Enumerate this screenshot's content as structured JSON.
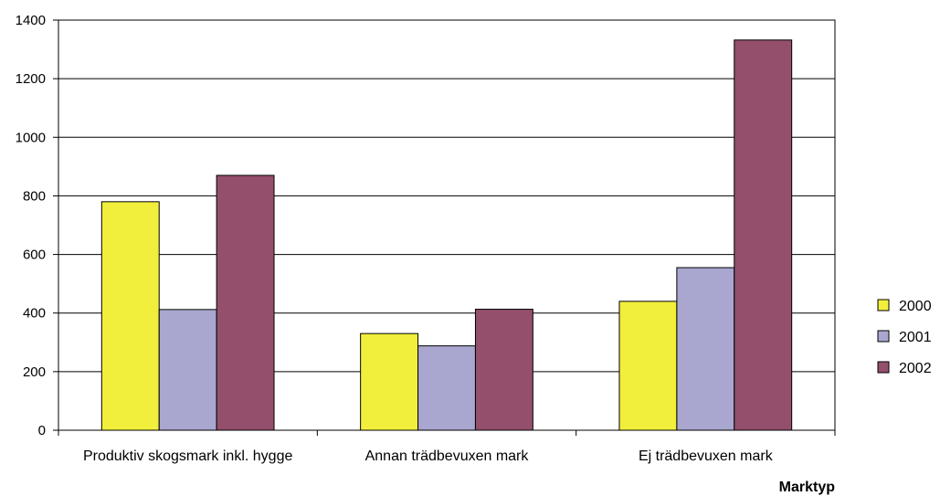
{
  "chart_data": {
    "type": "bar",
    "categories": [
      "Produktiv skogsmark inkl. hygge",
      "Annan trädbevuxen mark",
      "Ej trädbevuxen mark"
    ],
    "series": [
      {
        "name": "2000",
        "color": "#f2ef3c",
        "values": [
          780,
          330,
          440
        ]
      },
      {
        "name": "2001",
        "color": "#a9a7cf",
        "values": [
          412,
          288,
          555
        ]
      },
      {
        "name": "2002",
        "color": "#944f6c",
        "values": [
          870,
          413,
          1332
        ]
      }
    ],
    "title": "",
    "xlabel": "Marktyp",
    "ylabel": "",
    "ylim": [
      0,
      1400
    ],
    "yticks": [
      "0",
      "200",
      "400",
      "600",
      "800",
      "1000",
      "1200",
      "1400"
    ],
    "grid": true,
    "legend_position": "right"
  }
}
